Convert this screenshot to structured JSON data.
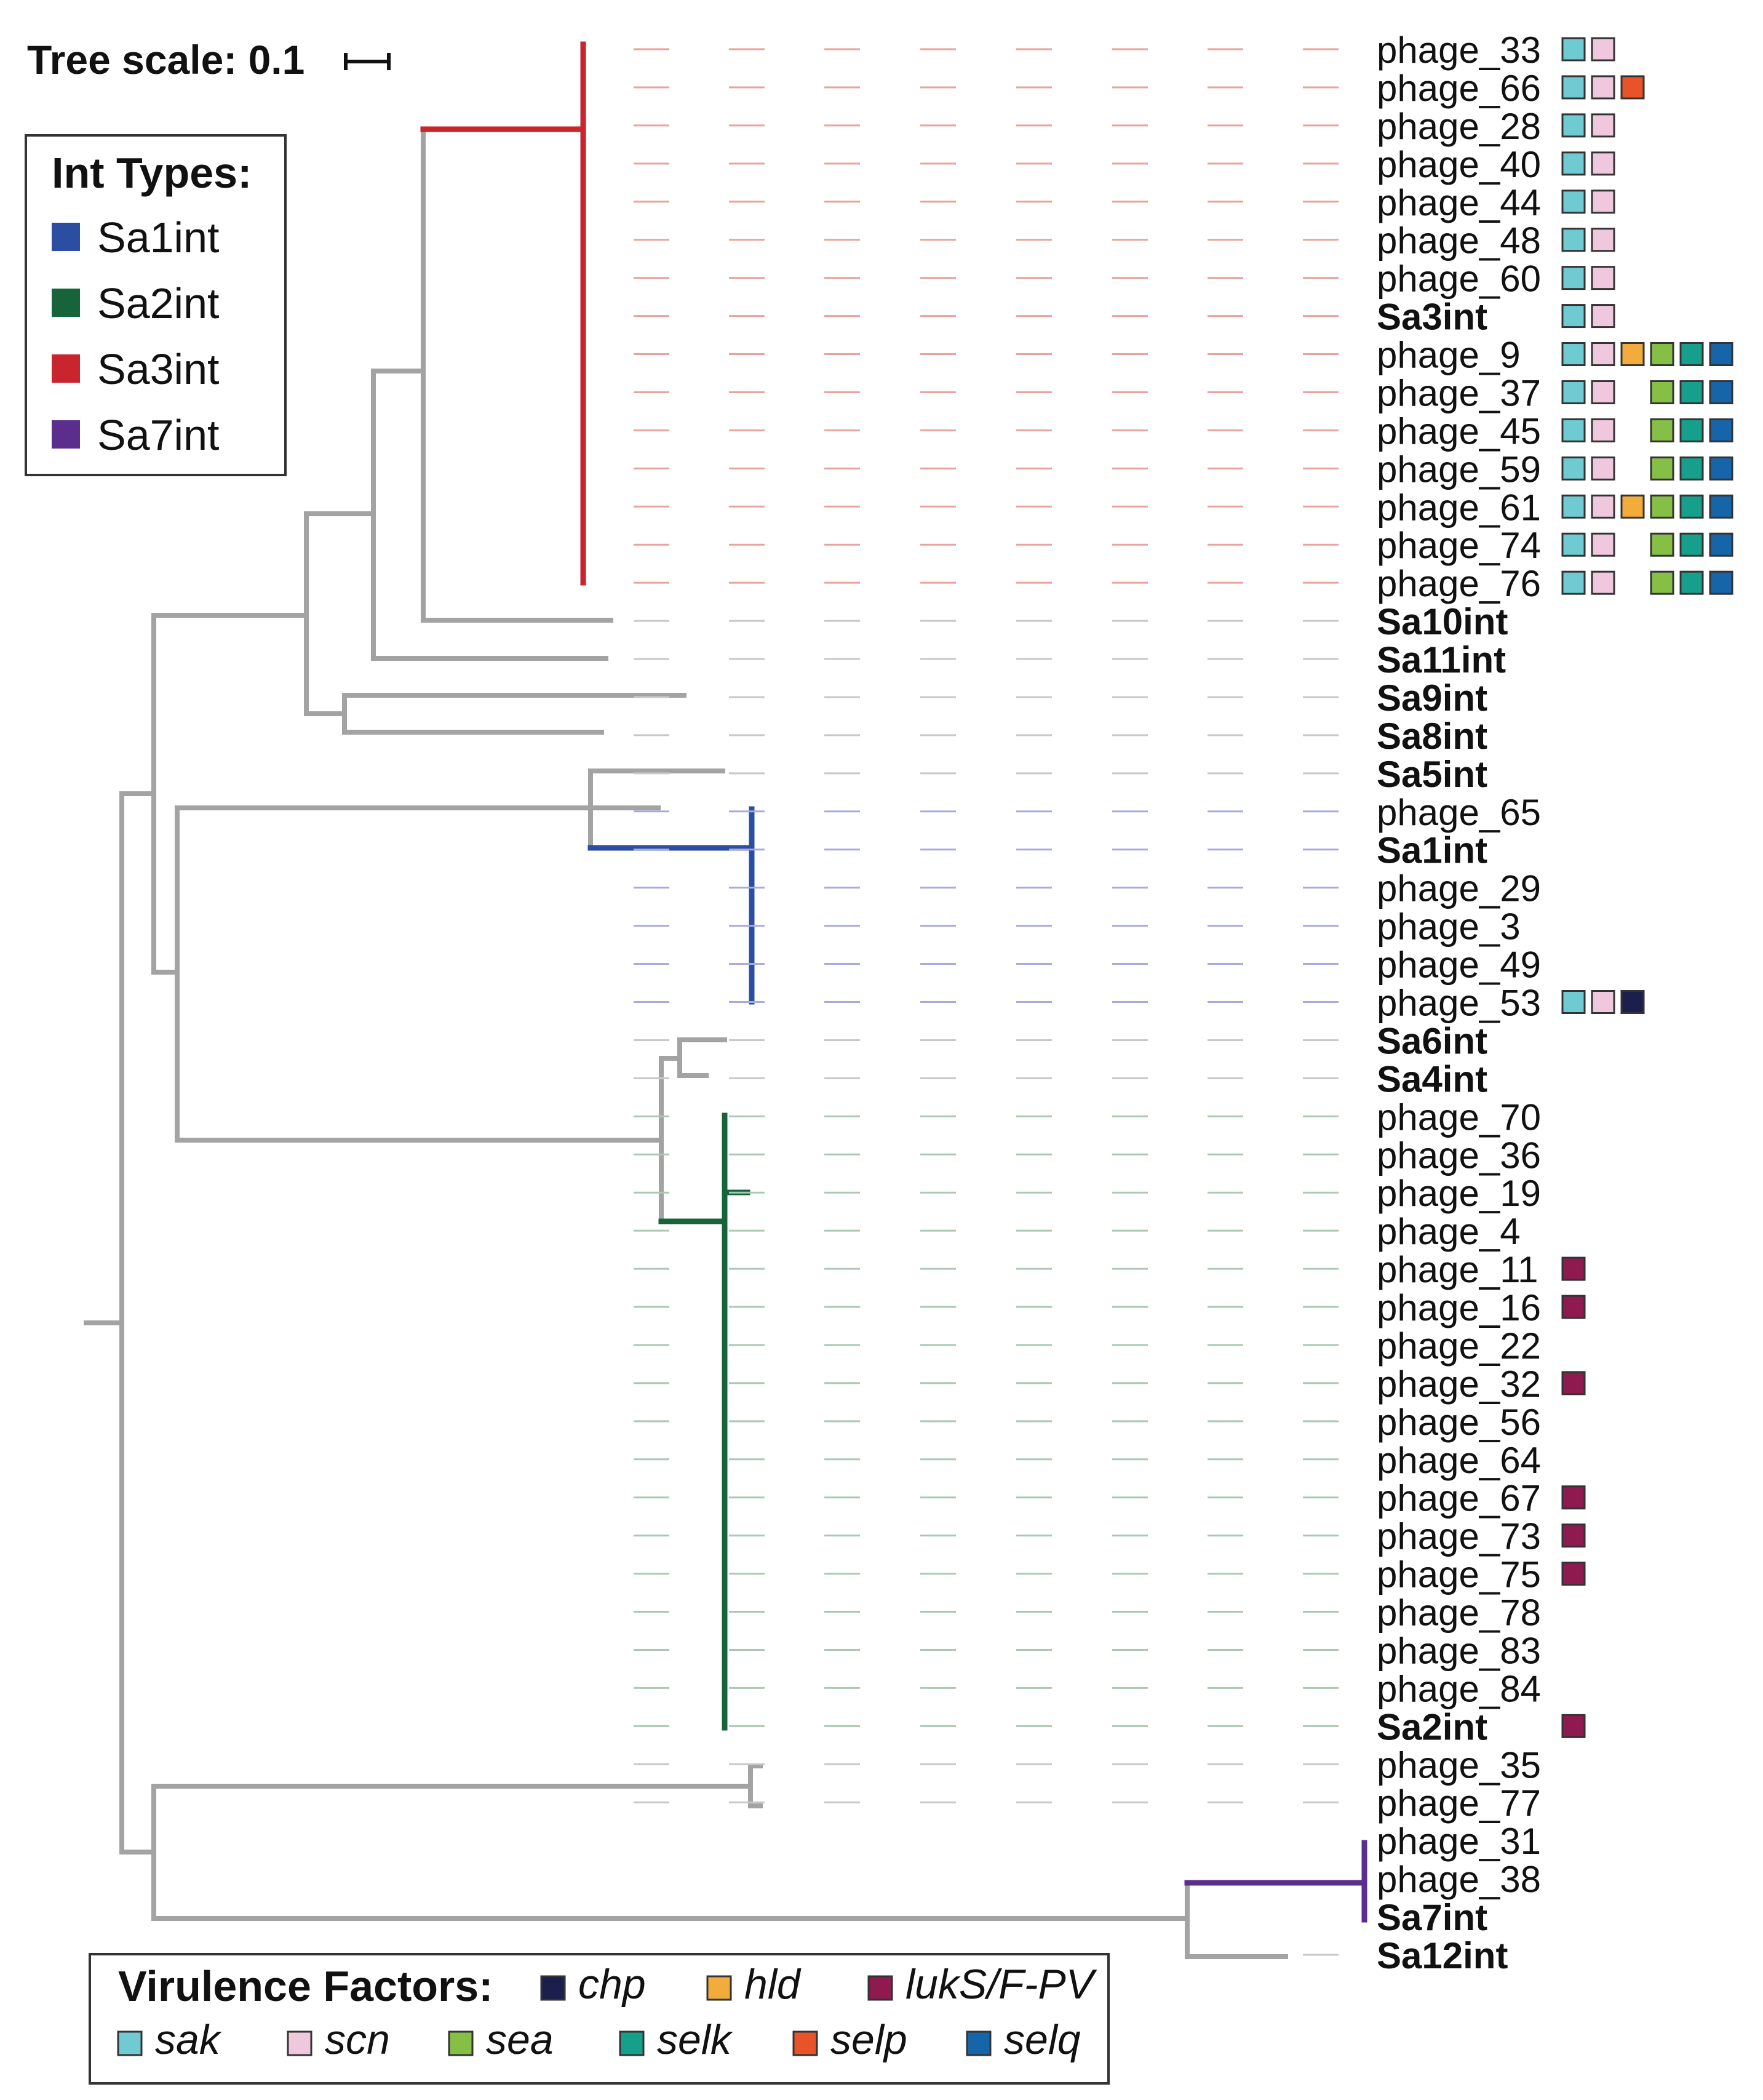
{
  "tree_scale": {
    "label": "Tree scale: 0.1"
  },
  "int_legend": {
    "title": "Int Types:",
    "items": [
      {
        "label": "Sa1int",
        "color": "#2b4ea2"
      },
      {
        "label": "Sa2int",
        "color": "#17633a"
      },
      {
        "label": "Sa3int",
        "color": "#c8252f"
      },
      {
        "label": "Sa7int",
        "color": "#5b2e8e"
      }
    ]
  },
  "virulence_legend": {
    "title": "Virulence Factors:",
    "items": [
      {
        "key": "chp",
        "label": "chp",
        "color": "#1c1f4e"
      },
      {
        "key": "hld",
        "label": "hld",
        "color": "#f2ac3c"
      },
      {
        "key": "luk",
        "label": "lukS/F-PV",
        "color": "#8e1a4f"
      },
      {
        "key": "sak",
        "label": "sak",
        "color": "#6fcad2"
      },
      {
        "key": "scn",
        "label": "scn",
        "color": "#f0c8de"
      },
      {
        "key": "sea",
        "label": "sea",
        "color": "#86bf45"
      },
      {
        "key": "selk",
        "label": "selk",
        "color": "#16a08b"
      },
      {
        "key": "selp",
        "label": "selp",
        "color": "#e8532a"
      },
      {
        "key": "selq",
        "label": "selq",
        "color": "#1765a9"
      }
    ]
  },
  "colors": {
    "gray_branch": "#a3a3a3",
    "dash_red": "#e9a39c",
    "dash_blue": "#a9a9e0",
    "dash_green": "#a9c9b2",
    "dash_gray": "#c8c8c8"
  },
  "tips": [
    {
      "label": "phage_33",
      "bold": false,
      "clade": "red",
      "factors": [
        "sak",
        "scn"
      ]
    },
    {
      "label": "phage_66",
      "bold": false,
      "clade": "red",
      "factors": [
        "sak",
        "scn",
        "selp"
      ]
    },
    {
      "label": "phage_28",
      "bold": false,
      "clade": "red",
      "factors": [
        "sak",
        "scn"
      ]
    },
    {
      "label": "phage_40",
      "bold": false,
      "clade": "red",
      "factors": [
        "sak",
        "scn"
      ]
    },
    {
      "label": "phage_44",
      "bold": false,
      "clade": "red",
      "factors": [
        "sak",
        "scn"
      ]
    },
    {
      "label": "phage_48",
      "bold": false,
      "clade": "red",
      "factors": [
        "sak",
        "scn"
      ]
    },
    {
      "label": "phage_60",
      "bold": false,
      "clade": "red",
      "factors": [
        "sak",
        "scn"
      ]
    },
    {
      "label": "Sa3int",
      "bold": true,
      "clade": "red",
      "factors": [
        "sak",
        "scn"
      ]
    },
    {
      "label": "phage_9",
      "bold": false,
      "clade": "red",
      "factors": [
        "sak",
        "scn",
        "hld",
        "sea",
        "selk",
        "selq"
      ]
    },
    {
      "label": "phage_37",
      "bold": false,
      "clade": "red",
      "factors": [
        "sak",
        "scn",
        "",
        "sea",
        "selk",
        "selq"
      ]
    },
    {
      "label": "phage_45",
      "bold": false,
      "clade": "red",
      "factors": [
        "sak",
        "scn",
        "",
        "sea",
        "selk",
        "selq"
      ]
    },
    {
      "label": "phage_59",
      "bold": false,
      "clade": "red",
      "factors": [
        "sak",
        "scn",
        "",
        "sea",
        "selk",
        "selq"
      ]
    },
    {
      "label": "phage_61",
      "bold": false,
      "clade": "red",
      "factors": [
        "sak",
        "scn",
        "hld",
        "sea",
        "selk",
        "selq"
      ]
    },
    {
      "label": "phage_74",
      "bold": false,
      "clade": "red",
      "factors": [
        "sak",
        "scn",
        "",
        "sea",
        "selk",
        "selq"
      ]
    },
    {
      "label": "phage_76",
      "bold": false,
      "clade": "red",
      "factors": [
        "sak",
        "scn",
        "",
        "sea",
        "selk",
        "selq"
      ]
    },
    {
      "label": "Sa10int",
      "bold": true,
      "clade": "gray",
      "factors": []
    },
    {
      "label": "Sa11int",
      "bold": true,
      "clade": "gray",
      "factors": []
    },
    {
      "label": "Sa9int",
      "bold": true,
      "clade": "gray",
      "factors": []
    },
    {
      "label": "Sa8int",
      "bold": true,
      "clade": "gray",
      "factors": []
    },
    {
      "label": "Sa5int",
      "bold": true,
      "clade": "gray",
      "factors": []
    },
    {
      "label": "phage_65",
      "bold": false,
      "clade": "blue",
      "factors": []
    },
    {
      "label": "Sa1int",
      "bold": true,
      "clade": "blue",
      "factors": []
    },
    {
      "label": "phage_29",
      "bold": false,
      "clade": "blue",
      "factors": []
    },
    {
      "label": "phage_3",
      "bold": false,
      "clade": "blue",
      "factors": []
    },
    {
      "label": "phage_49",
      "bold": false,
      "clade": "blue",
      "factors": []
    },
    {
      "label": "phage_53",
      "bold": false,
      "clade": "blue",
      "factors": [
        "sak",
        "scn",
        "chp"
      ]
    },
    {
      "label": "Sa6int",
      "bold": true,
      "clade": "gray",
      "factors": []
    },
    {
      "label": "Sa4int",
      "bold": true,
      "clade": "gray",
      "factors": []
    },
    {
      "label": "phage_70",
      "bold": false,
      "clade": "green",
      "factors": []
    },
    {
      "label": "phage_36",
      "bold": false,
      "clade": "green",
      "factors": []
    },
    {
      "label": "phage_19",
      "bold": false,
      "clade": "green",
      "factors": []
    },
    {
      "label": "phage_4",
      "bold": false,
      "clade": "green",
      "factors": []
    },
    {
      "label": "phage_11",
      "bold": false,
      "clade": "green",
      "factors": [
        "luk"
      ]
    },
    {
      "label": "phage_16",
      "bold": false,
      "clade": "green",
      "factors": [
        "luk"
      ]
    },
    {
      "label": "phage_22",
      "bold": false,
      "clade": "green",
      "factors": []
    },
    {
      "label": "phage_32",
      "bold": false,
      "clade": "green",
      "factors": [
        "luk"
      ]
    },
    {
      "label": "phage_56",
      "bold": false,
      "clade": "green",
      "factors": []
    },
    {
      "label": "phage_64",
      "bold": false,
      "clade": "green",
      "factors": []
    },
    {
      "label": "phage_67",
      "bold": false,
      "clade": "green",
      "factors": [
        "luk"
      ]
    },
    {
      "label": "phage_73",
      "bold": false,
      "clade": "green",
      "factors": [
        "luk"
      ]
    },
    {
      "label": "phage_75",
      "bold": false,
      "clade": "green",
      "factors": [
        "luk"
      ]
    },
    {
      "label": "phage_78",
      "bold": false,
      "clade": "green",
      "factors": []
    },
    {
      "label": "phage_83",
      "bold": false,
      "clade": "green",
      "factors": []
    },
    {
      "label": "phage_84",
      "bold": false,
      "clade": "green",
      "factors": []
    },
    {
      "label": "Sa2int",
      "bold": true,
      "clade": "green",
      "factors": [
        "luk"
      ]
    },
    {
      "label": "phage_35",
      "bold": false,
      "clade": "gray",
      "factors": []
    },
    {
      "label": "phage_77",
      "bold": false,
      "clade": "gray",
      "factors": []
    },
    {
      "label": "phage_31",
      "bold": false,
      "clade": "purple",
      "factors": []
    },
    {
      "label": "phage_38",
      "bold": false,
      "clade": "purple",
      "factors": []
    },
    {
      "label": "Sa7int",
      "bold": true,
      "clade": "purple",
      "factors": []
    },
    {
      "label": "Sa12int",
      "bold": true,
      "clade": "gray",
      "factors": []
    }
  ]
}
